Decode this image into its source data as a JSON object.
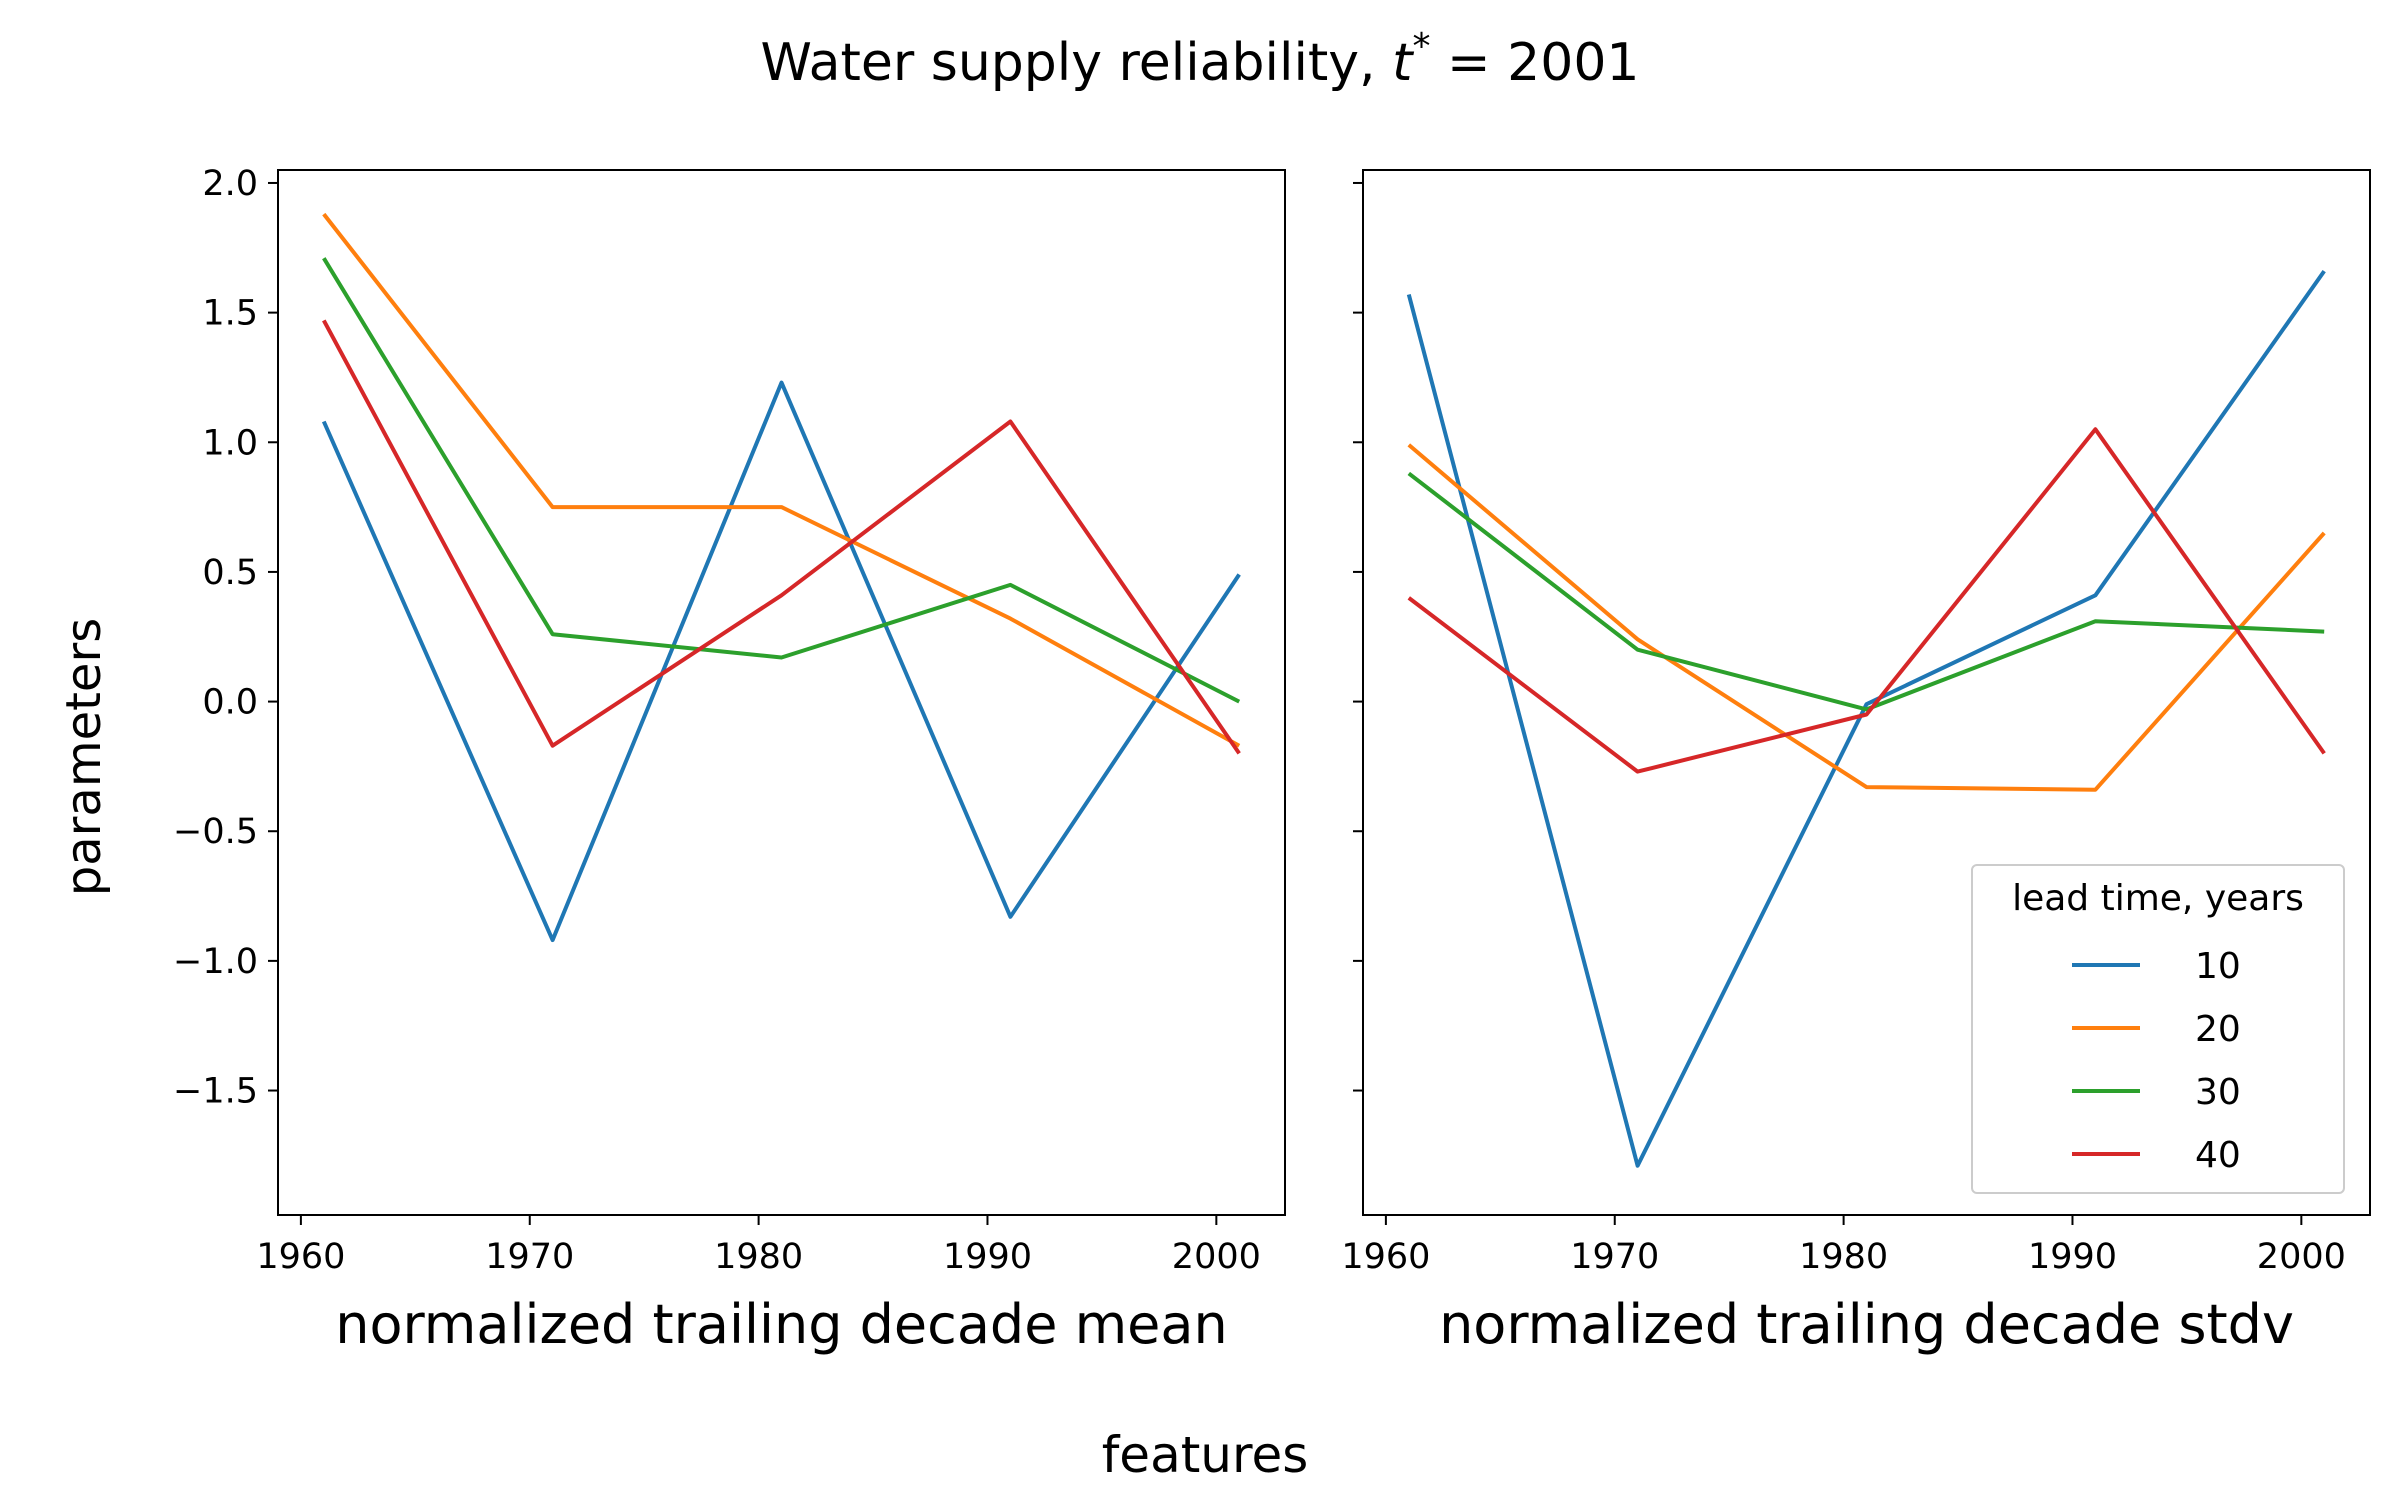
{
  "chart_data": {
    "type": "line",
    "title": "Water supply reliability, t* = 2001",
    "title_parts": {
      "prefix": "Water supply reliability, ",
      "var": "t",
      "sup": "*",
      "suffix": " = 2001"
    },
    "suptitle_x": "features",
    "ylabel": "parameters",
    "legend": {
      "title": "lead time, years",
      "position": "lower right"
    },
    "colors": {
      "10": "#1f77b4",
      "20": "#ff7f0e",
      "30": "#2ca02c",
      "40": "#d62728"
    },
    "ylim": [
      -1.98,
      2.05
    ],
    "yticks": [
      -1.5,
      -1.0,
      -0.5,
      0.0,
      0.5,
      1.0,
      1.5,
      2.0
    ],
    "ytick_labels": [
      "−1.5",
      "−1.0",
      "−0.5",
      "0.0",
      "0.5",
      "1.0",
      "1.5",
      "2.0"
    ],
    "xlim": [
      1959,
      2003
    ],
    "xticks": [
      1960,
      1970,
      1980,
      1990,
      2000
    ],
    "xtick_labels": [
      "1960",
      "1970",
      "1980",
      "1990",
      "2000"
    ],
    "panels": [
      {
        "xlabel": "normalized trailing decade mean",
        "x": [
          1961,
          1971,
          1981,
          1991,
          2001
        ],
        "series": [
          {
            "name": "10",
            "values": [
              1.08,
              -0.92,
              1.23,
              -0.83,
              0.49
            ]
          },
          {
            "name": "20",
            "values": [
              1.88,
              0.75,
              0.75,
              0.32,
              -0.17
            ]
          },
          {
            "name": "30",
            "values": [
              1.71,
              0.26,
              0.17,
              0.45,
              0.0
            ]
          },
          {
            "name": "40",
            "values": [
              1.47,
              -0.17,
              0.41,
              1.08,
              -0.2
            ]
          }
        ]
      },
      {
        "xlabel": "normalized trailing decade stdv",
        "x": [
          1961,
          1971,
          1981,
          1991,
          2001
        ],
        "series": [
          {
            "name": "10",
            "values": [
              1.57,
              -1.79,
              -0.01,
              0.41,
              1.66
            ]
          },
          {
            "name": "20",
            "values": [
              0.99,
              0.24,
              -0.33,
              -0.34,
              0.65
            ]
          },
          {
            "name": "30",
            "values": [
              0.88,
              0.2,
              -0.03,
              0.31,
              0.27
            ]
          },
          {
            "name": "40",
            "values": [
              0.4,
              -0.27,
              -0.05,
              1.05,
              -0.2
            ]
          }
        ]
      }
    ]
  }
}
